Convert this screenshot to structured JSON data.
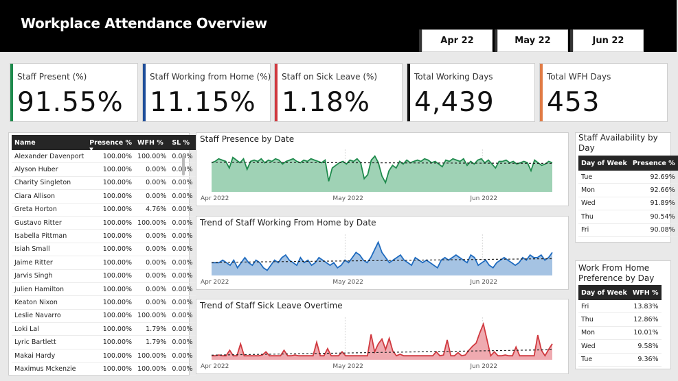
{
  "header": {
    "title": "Workplace Attendance Overview"
  },
  "months": [
    "Apr 22",
    "May 22",
    "Jun 22"
  ],
  "kpis": [
    {
      "label": "Staff Present (%)",
      "value": "91.55%",
      "color": "#1e8a4c"
    },
    {
      "label": "Staff Working from Home (%)",
      "value": "11.15%",
      "color": "#1f4e9a"
    },
    {
      "label": "Staff on Sick Leave (%)",
      "value": "1.18%",
      "color": "#d0393f"
    },
    {
      "label": "Total Working Days",
      "value": "4,439",
      "color": "#111111"
    },
    {
      "label": "Total WFH Days",
      "value": "453",
      "color": "#e07b45"
    }
  ],
  "staff_table": {
    "headers": [
      "Name",
      "Presence %",
      "WFH %",
      "SL %"
    ],
    "rows": [
      [
        "Alexander Davenport",
        "100.00%",
        "100.00%",
        "0.00%"
      ],
      [
        "Alyson Huber",
        "100.00%",
        "0.00%",
        "0.00%"
      ],
      [
        "Charity Singleton",
        "100.00%",
        "0.00%",
        "0.00%"
      ],
      [
        "Ciara Allison",
        "100.00%",
        "0.00%",
        "0.00%"
      ],
      [
        "Greta Horton",
        "100.00%",
        "4.76%",
        "0.00%"
      ],
      [
        "Gustavo Ritter",
        "100.00%",
        "100.00%",
        "0.00%"
      ],
      [
        "Isabella Pittman",
        "100.00%",
        "0.00%",
        "0.00%"
      ],
      [
        "Isiah Small",
        "100.00%",
        "0.00%",
        "0.00%"
      ],
      [
        "Jaime Ritter",
        "100.00%",
        "0.00%",
        "0.00%"
      ],
      [
        "Jarvis Singh",
        "100.00%",
        "0.00%",
        "0.00%"
      ],
      [
        "Julien Hamilton",
        "100.00%",
        "0.00%",
        "0.00%"
      ],
      [
        "Keaton Nixon",
        "100.00%",
        "0.00%",
        "0.00%"
      ],
      [
        "Leslie Navarro",
        "100.00%",
        "100.00%",
        "0.00%"
      ],
      [
        "Loki Lal",
        "100.00%",
        "1.79%",
        "0.00%"
      ],
      [
        "Lyric Bartlett",
        "100.00%",
        "1.79%",
        "0.00%"
      ],
      [
        "Makai Hardy",
        "100.00%",
        "100.00%",
        "0.00%"
      ],
      [
        "Maximus Mckenzie",
        "100.00%",
        "100.00%",
        "0.00%"
      ]
    ]
  },
  "charts": {
    "x_ticks": [
      "Apr 2022",
      "May 2022",
      "Jun 2022"
    ],
    "presence": {
      "title": "Staff Presence by Date",
      "color": "#1e8a4c",
      "fill": "#9fd2b5",
      "values": [
        92,
        93,
        95,
        94,
        93,
        88,
        96,
        94,
        92,
        95,
        87,
        93,
        94,
        93,
        95,
        92,
        94,
        93,
        95,
        94,
        91,
        93,
        94,
        95,
        93,
        92,
        94,
        93,
        95,
        94,
        93,
        92,
        94,
        78,
        88,
        90,
        92,
        93,
        91,
        94,
        93,
        95,
        92,
        80,
        83,
        94,
        97,
        92,
        82,
        77,
        86,
        90,
        88,
        93,
        91,
        94,
        92,
        93,
        94,
        93,
        95,
        94,
        92,
        93,
        91,
        89,
        94,
        93,
        95,
        94,
        93,
        95,
        90,
        93,
        91,
        94,
        95,
        92,
        94,
        91,
        88,
        93,
        93,
        94,
        92,
        93,
        91,
        92,
        93,
        92,
        86,
        94,
        92,
        90,
        91,
        93,
        92
      ]
    },
    "wfh": {
      "title": "Trend of Staff Working From Home by Date",
      "color": "#1f6bbf",
      "fill": "#a5c3e3",
      "values": [
        10,
        10,
        10,
        11,
        10,
        9,
        11,
        8,
        10,
        12,
        10,
        9,
        11,
        10,
        8,
        7,
        9,
        11,
        10,
        12,
        13,
        11,
        10,
        9,
        12,
        10,
        11,
        9,
        10,
        12,
        11,
        10,
        9,
        10,
        8,
        9,
        11,
        10,
        12,
        14,
        13,
        11,
        10,
        12,
        15,
        18,
        14,
        12,
        10,
        11,
        12,
        13,
        11,
        10,
        9,
        12,
        11,
        10,
        11,
        10,
        9,
        8,
        11,
        12,
        11,
        12,
        13,
        12,
        11,
        10,
        13,
        12,
        9,
        10,
        11,
        9,
        8,
        10,
        11,
        12,
        11,
        10,
        9,
        10,
        12,
        11,
        13,
        12,
        12,
        13,
        11,
        12,
        14
      ]
    },
    "sick": {
      "title": "Trend of Staff Sick Leave Overtime",
      "color": "#d0393f",
      "fill": "#efaab0",
      "values": [
        0.5,
        0.5,
        0.6,
        0.5,
        0.5,
        1.2,
        0.5,
        0.5,
        2.0,
        0.5,
        0.5,
        0.5,
        0.5,
        0.5,
        0.6,
        1.0,
        0.5,
        0.5,
        0.5,
        0.5,
        1.2,
        0.5,
        0.5,
        0.6,
        0.5,
        0.5,
        0.5,
        0.5,
        0.5,
        2.2,
        0.5,
        0.5,
        1.4,
        0.5,
        0.5,
        0.5,
        1.0,
        0.5,
        0.5,
        0.5,
        0.5,
        0.5,
        0.5,
        0.5,
        3.2,
        1.0,
        2.0,
        2.6,
        1.3,
        2.7,
        1.1,
        0.5,
        0.7,
        0.5,
        0.5,
        0.5,
        0.5,
        0.5,
        0.5,
        0.5,
        0.5,
        0.5,
        1.0,
        0.5,
        0.6,
        2.5,
        0.5,
        0.5,
        0.9,
        0.5,
        0.6,
        1.2,
        1.7,
        2.1,
        3.4,
        4.5,
        2.5,
        0.5,
        1.0,
        0.5,
        0.5,
        0.6,
        0.5,
        0.5,
        1.6,
        0.5,
        0.5,
        0.5,
        0.5,
        0.5,
        3.1,
        1.2,
        0.5,
        1.3,
        2.0
      ]
    }
  },
  "availability_by_day": {
    "title": "Staff Availability by Day",
    "headers": [
      "Day of Week",
      "Presence %"
    ],
    "rows": [
      [
        "Tue",
        "92.69%"
      ],
      [
        "Mon",
        "92.66%"
      ],
      [
        "Wed",
        "91.89%"
      ],
      [
        "Thu",
        "90.54%"
      ],
      [
        "Fri",
        "90.08%"
      ]
    ]
  },
  "wfh_by_day": {
    "title": "Work From Home Preference by Day",
    "headers": [
      "Day of Week",
      "WFH %"
    ],
    "rows": [
      [
        "Fri",
        "13.83%"
      ],
      [
        "Thu",
        "12.86%"
      ],
      [
        "Mon",
        "10.01%"
      ],
      [
        "Wed",
        "9.58%"
      ],
      [
        "Tue",
        "9.36%"
      ]
    ]
  }
}
